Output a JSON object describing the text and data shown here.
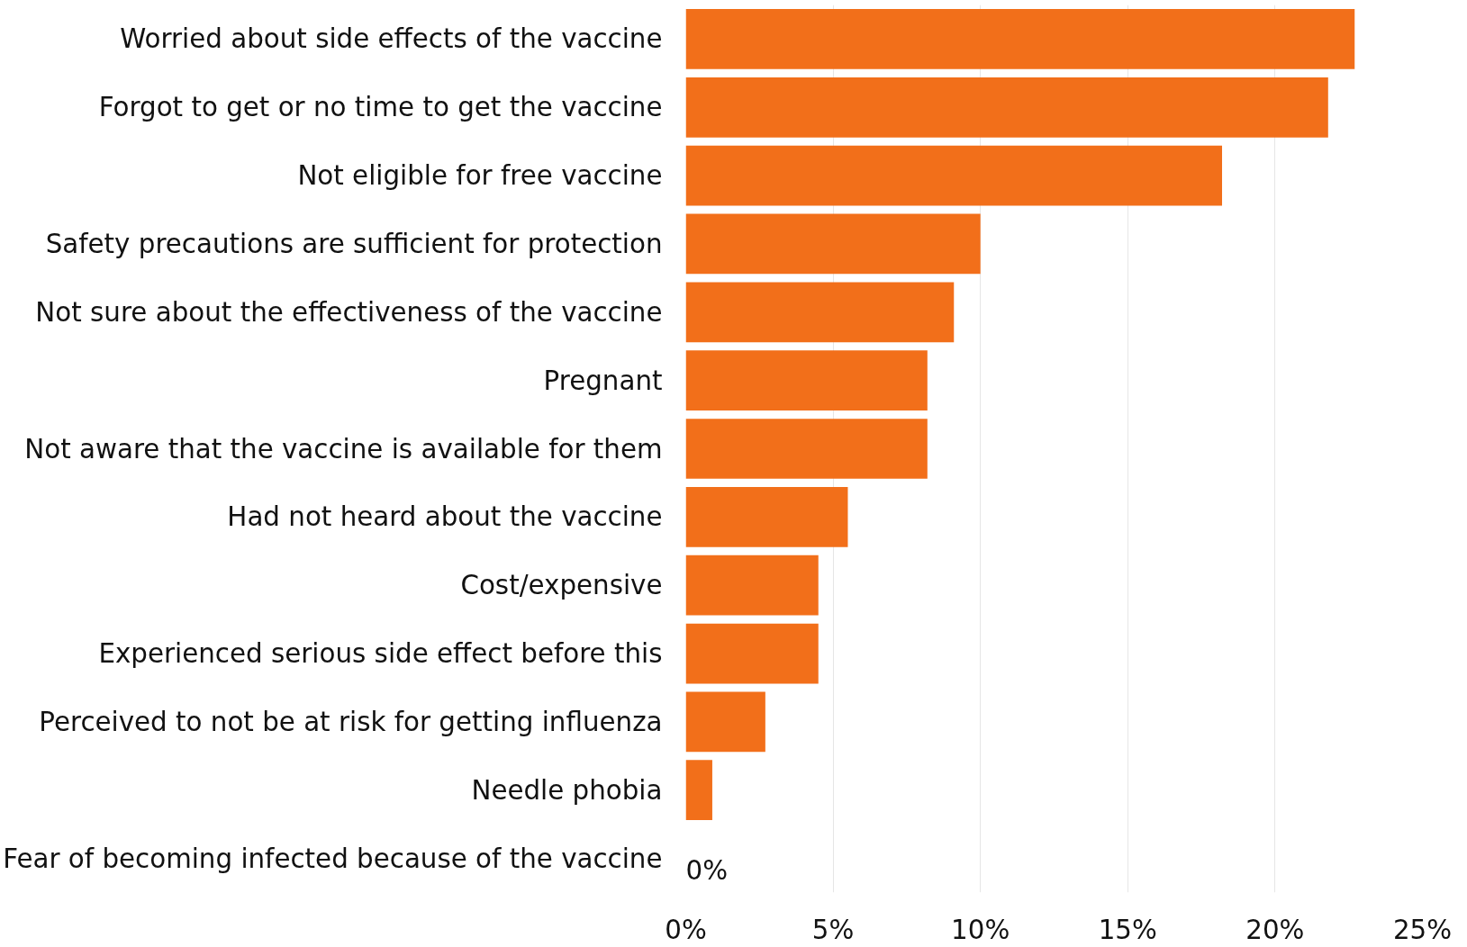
{
  "chart_data": {
    "type": "bar",
    "orientation": "horizontal",
    "categories": [
      "Worried about side effects of the vaccine",
      "Forgot to get or no time to get the vaccine",
      "Not eligible for free vaccine",
      "Safety precautions are sufficient for protection",
      "Not sure about the effectiveness of the vaccine",
      "Pregnant",
      "Not aware that the vaccine is available for them",
      "Had not heard about the vaccine",
      "Cost/expensive",
      "Experienced serious side effect before this",
      "Perceived to not be at risk for getting influenza",
      "Needle phobia",
      "Fear of becoming infected because of the vaccine"
    ],
    "values": [
      22.7,
      21.8,
      18.2,
      10.0,
      9.1,
      8.2,
      8.2,
      5.5,
      4.5,
      4.5,
      2.7,
      0.9,
      0
    ],
    "color": "#f26f1a",
    "xlim": [
      0,
      25
    ],
    "xticks": [
      {
        "value": 0,
        "label": "0%"
      },
      {
        "value": 5,
        "label": "5%"
      },
      {
        "value": 10,
        "label": "10%"
      },
      {
        "value": 15,
        "label": "15%"
      },
      {
        "value": 20,
        "label": "20%"
      },
      {
        "value": 25,
        "label": "25%"
      }
    ],
    "grid": "x",
    "annotations": [
      "0%"
    ]
  }
}
